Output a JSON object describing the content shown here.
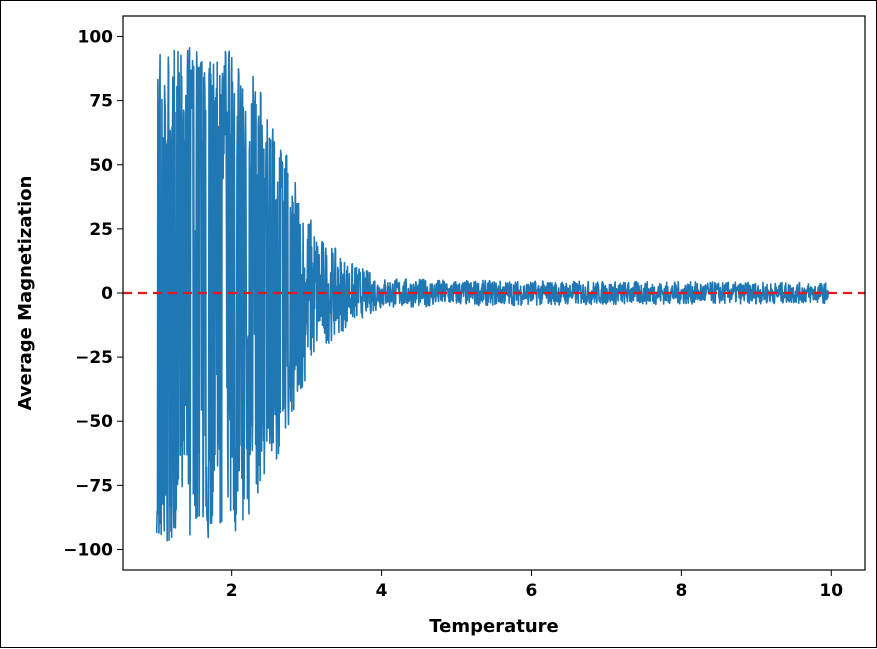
{
  "chart_data": {
    "type": "line",
    "title": "",
    "xlabel": "Temperature",
    "ylabel": "Average Magnetization",
    "xlim": [
      0.55,
      10.45
    ],
    "ylim": [
      -108,
      108
    ],
    "x_ticks": [
      2,
      4,
      6,
      8,
      10
    ],
    "x_tick_labels": [
      "2",
      "4",
      "6",
      "8",
      "10"
    ],
    "y_ticks": [
      100,
      75,
      50,
      25,
      0,
      -25,
      -50,
      -75,
      -100
    ],
    "y_tick_labels": [
      "100",
      "75",
      "50",
      "25",
      "0",
      "−25",
      "−50",
      "−75",
      "−100"
    ],
    "grid": false,
    "legend": "none",
    "series": [
      {
        "color": "#1f77b4",
        "x_range": [
          1.0,
          9.96
        ],
        "envelope": [
          {
            "t": 1.0,
            "amp": 97
          },
          {
            "t": 2.0,
            "amp": 95
          },
          {
            "t": 2.3,
            "amp": 85
          },
          {
            "t": 2.6,
            "amp": 65
          },
          {
            "t": 2.9,
            "amp": 40
          },
          {
            "t": 3.2,
            "amp": 22
          },
          {
            "t": 3.6,
            "amp": 12
          },
          {
            "t": 4.0,
            "amp": 6
          },
          {
            "t": 5.0,
            "amp": 5
          },
          {
            "t": 10.0,
            "amp": 4
          }
        ]
      }
    ],
    "reference_line": {
      "y": 0,
      "style": "dashed",
      "color": "#e31a1c"
    }
  }
}
